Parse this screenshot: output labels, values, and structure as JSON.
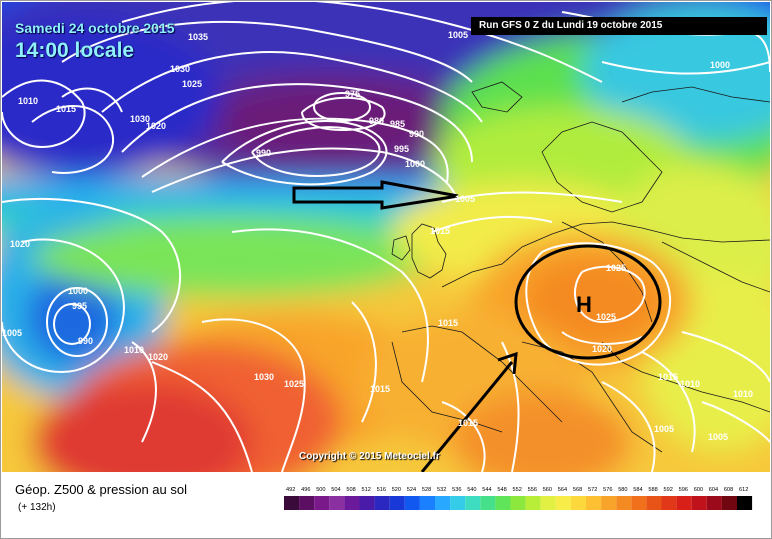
{
  "header": {
    "date": "Samedi 24 octobre 2015",
    "time": "14:00 locale",
    "run": "Run GFS 0 Z du Lundi 19 octobre 2015"
  },
  "map": {
    "high_marker": "H",
    "pressure_labels": [
      "1035",
      "1005",
      "1000",
      "1030",
      "1025",
      "1010",
      "1015",
      "1030",
      "1020",
      "975",
      "980",
      "985",
      "990",
      "995",
      "1000",
      "990",
      "1020",
      "1015",
      "1000",
      "995",
      "1005",
      "990",
      "1010",
      "1020",
      "1025",
      "1025",
      "1020",
      "1015",
      "1030",
      "1025",
      "1015",
      "1015",
      "1015",
      "1010",
      "1010",
      "1005",
      "1005",
      "1005"
    ],
    "copyright": "Copyright © 2015 Meteociel.fr"
  },
  "footer": {
    "product": "Géop. Z500 & pression au sol",
    "lead": "(+ 132h)"
  },
  "legend": {
    "ticks": [
      "492",
      "496",
      "500",
      "504",
      "508",
      "512",
      "516",
      "520",
      "524",
      "528",
      "532",
      "536",
      "540",
      "544",
      "548",
      "552",
      "556",
      "560",
      "564",
      "568",
      "572",
      "576",
      "580",
      "584",
      "588",
      "592",
      "596",
      "600",
      "604",
      "608",
      "612"
    ],
    "colors": [
      "#3a0a3a",
      "#5c0e62",
      "#7a1a8a",
      "#8a30a0",
      "#6a1a9a",
      "#4a1aa8",
      "#2a28c0",
      "#1838d8",
      "#1058f0",
      "#1a80ff",
      "#28a8ff",
      "#34cce8",
      "#3edcc0",
      "#46e08a",
      "#60e45a",
      "#8ce83c",
      "#b8ee38",
      "#e2f044",
      "#f8ec48",
      "#fcd83c",
      "#fcc032",
      "#f8a42a",
      "#f48a22",
      "#f0701c",
      "#e85418",
      "#e03818",
      "#d82018",
      "#c0121a",
      "#9a0a1a",
      "#700610",
      "#000000"
    ],
    "scale_colors_note": ""
  }
}
